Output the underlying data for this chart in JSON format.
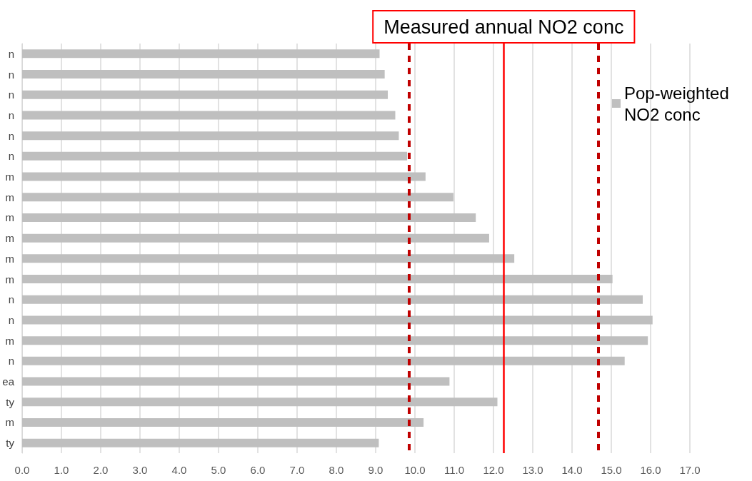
{
  "chart_data": {
    "type": "bar",
    "orientation": "horizontal",
    "categories": [
      "n",
      "n",
      "n",
      "n",
      "n",
      "n",
      "m",
      "m",
      "m",
      "m",
      "m",
      "m",
      "n",
      "n",
      "m",
      "n",
      "ea",
      "ty",
      "m",
      "ty"
    ],
    "series": [
      {
        "name": "Pop-weighted NO2 conc",
        "color": "#bfbfbf",
        "values": [
          9.1,
          9.23,
          9.31,
          9.5,
          9.59,
          9.8,
          10.27,
          10.98,
          11.55,
          11.89,
          12.53,
          15.03,
          15.8,
          16.05,
          15.93,
          15.34,
          10.88,
          12.1,
          10.22,
          9.08
        ]
      }
    ],
    "xlim": [
      0,
      17
    ],
    "xticks": [
      {
        "value": 0,
        "label": "0.0"
      },
      {
        "value": 1,
        "label": "1.0"
      },
      {
        "value": 2,
        "label": "2.0"
      },
      {
        "value": 3,
        "label": "3.0"
      },
      {
        "value": 4,
        "label": "4.0"
      },
      {
        "value": 5,
        "label": "5.0"
      },
      {
        "value": 6,
        "label": "6.0"
      },
      {
        "value": 7,
        "label": "7.0"
      },
      {
        "value": 8,
        "label": "8.0"
      },
      {
        "value": 9,
        "label": "9.0"
      },
      {
        "value": 10,
        "label": "10.0"
      },
      {
        "value": 11,
        "label": "11.0"
      },
      {
        "value": 12,
        "label": "12.0"
      },
      {
        "value": 13,
        "label": "13.0"
      },
      {
        "value": 14,
        "label": "14.0"
      },
      {
        "value": 15,
        "label": "15.0"
      },
      {
        "value": 16,
        "label": "16.0"
      },
      {
        "value": 17,
        "label": "17.0"
      }
    ],
    "grid": "x",
    "legend": "top right",
    "ref_lines": [
      {
        "axis": "x",
        "value": 9.85,
        "color": "#c00000",
        "line_style": "dashed"
      },
      {
        "axis": "x",
        "value": 12.26,
        "label": "Measured annual NO2 conc",
        "color": "#ff0000",
        "line_style": "solid"
      },
      {
        "axis": "x",
        "value": 14.66,
        "color": "#c00000",
        "line_style": "dashed"
      }
    ]
  }
}
